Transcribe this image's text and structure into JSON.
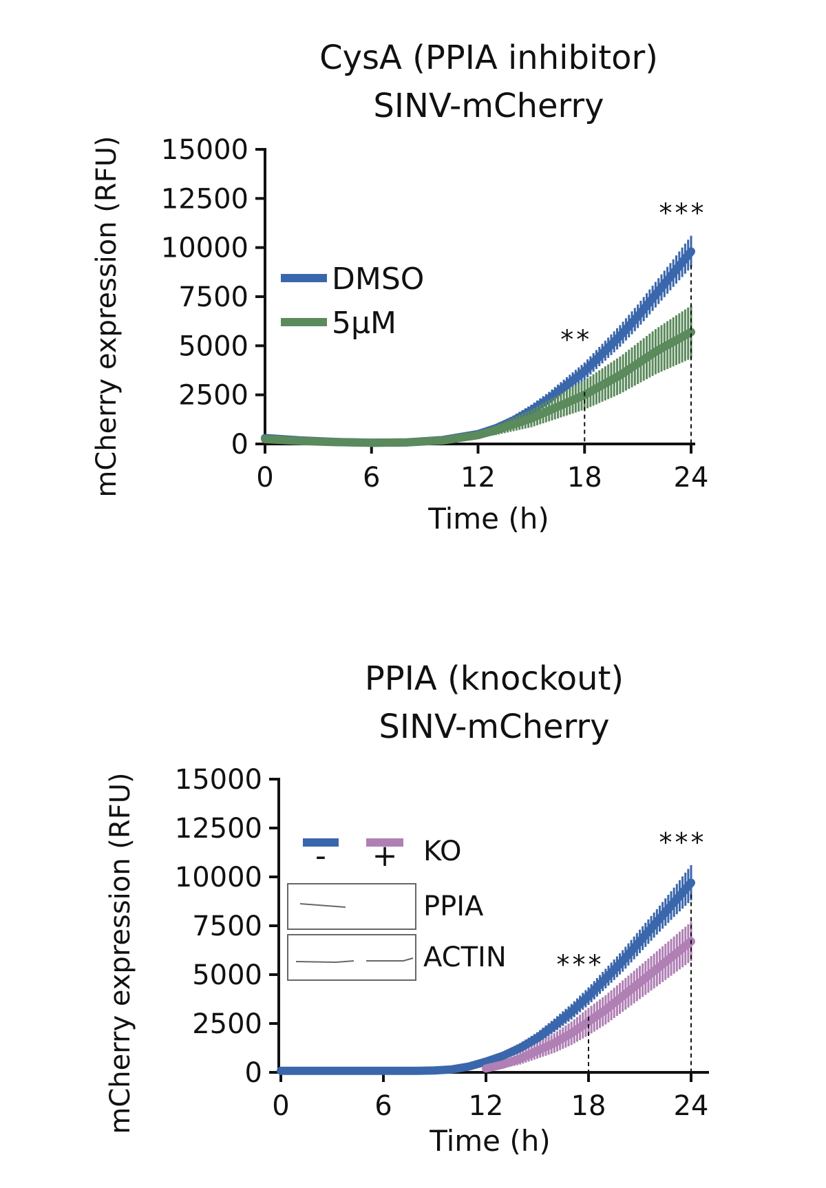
{
  "chart_data": [
    {
      "type": "line",
      "title": "CysA (PPIA inhibitor)",
      "subtitle": "SINV-mCherry",
      "xlabel": "Time (h)",
      "ylabel": "mCherry expression (RFU)",
      "xlim": [
        0,
        24
      ],
      "ylim": [
        0,
        15000
      ],
      "xticks": [
        "0",
        "6",
        "12",
        "18",
        "24"
      ],
      "yticks": [
        "0",
        "2500",
        "5000",
        "7500",
        "10000",
        "12500",
        "15000"
      ],
      "grid": false,
      "legend_position": "top-left",
      "series": [
        {
          "name": "DMSO",
          "color": "#3a67ac",
          "x": [
            0,
            2,
            4,
            6,
            8,
            10,
            12,
            13,
            14,
            15,
            16,
            17,
            18,
            19,
            20,
            21,
            22,
            23,
            24
          ],
          "y": [
            300,
            180,
            100,
            60,
            80,
            200,
            500,
            800,
            1200,
            1700,
            2300,
            3000,
            3700,
            4600,
            5500,
            6500,
            7600,
            8700,
            9800
          ],
          "error": [
            0,
            0,
            0,
            0,
            0,
            0,
            150,
            200,
            250,
            300,
            350,
            400,
            450,
            500,
            550,
            600,
            650,
            700,
            800
          ]
        },
        {
          "name": "5μM",
          "color": "#5b8a5c",
          "x": [
            0,
            2,
            4,
            6,
            8,
            10,
            12,
            13,
            14,
            15,
            16,
            17,
            18,
            19,
            20,
            21,
            22,
            23,
            24
          ],
          "y": [
            250,
            150,
            90,
            60,
            80,
            180,
            450,
            700,
            1000,
            1300,
            1700,
            2100,
            2500,
            3000,
            3500,
            4100,
            4700,
            5200,
            5700
          ],
          "error": [
            0,
            0,
            0,
            0,
            0,
            0,
            150,
            250,
            350,
            450,
            550,
            650,
            750,
            850,
            950,
            1050,
            1150,
            1250,
            1350
          ]
        }
      ],
      "annotations": [
        {
          "x": 18,
          "text": "**"
        },
        {
          "x": 24,
          "text": "***"
        }
      ]
    },
    {
      "type": "line",
      "title": "PPIA (knockout)",
      "subtitle": "SINV-mCherry",
      "xlabel": "Time (h)",
      "ylabel": "mCherry expression (RFU)",
      "xlim": [
        0,
        24
      ],
      "ylim": [
        0,
        15000
      ],
      "xticks": [
        "0",
        "6",
        "12",
        "18",
        "24"
      ],
      "yticks": [
        "0",
        "2500",
        "5000",
        "7500",
        "10000",
        "12500",
        "15000"
      ],
      "grid": false,
      "legend_position": "top-left",
      "legend": {
        "minus": "-",
        "plus": "+",
        "ko": "KO",
        "ppia": "PPIA",
        "actin": "ACTIN"
      },
      "series": [
        {
          "name": "-",
          "color": "#3a67ac",
          "x": [
            0,
            2,
            4,
            6,
            8,
            9,
            10,
            11,
            12,
            13,
            14,
            15,
            16,
            17,
            18,
            19,
            20,
            21,
            22,
            23,
            24
          ],
          "y": [
            80,
            80,
            80,
            80,
            80,
            100,
            150,
            300,
            550,
            850,
            1250,
            1750,
            2400,
            3100,
            3900,
            4800,
            5700,
            6700,
            7700,
            8700,
            9700
          ],
          "error": [
            0,
            0,
            0,
            0,
            0,
            0,
            0,
            0,
            150,
            200,
            250,
            300,
            350,
            400,
            450,
            500,
            550,
            600,
            650,
            750,
            900
          ]
        },
        {
          "name": "+",
          "color": "#b07fb4",
          "x": [
            12,
            13,
            14,
            15,
            16,
            17,
            18,
            19,
            20,
            21,
            22,
            23,
            24
          ],
          "y": [
            200,
            400,
            700,
            1100,
            1500,
            2000,
            2600,
            3200,
            3900,
            4600,
            5300,
            6000,
            6700
          ],
          "error": [
            100,
            200,
            300,
            400,
            500,
            600,
            700,
            750,
            800,
            850,
            900,
            950,
            1000
          ]
        }
      ],
      "annotations": [
        {
          "x": 18,
          "text": "***"
        },
        {
          "x": 24,
          "text": "***"
        }
      ]
    }
  ]
}
